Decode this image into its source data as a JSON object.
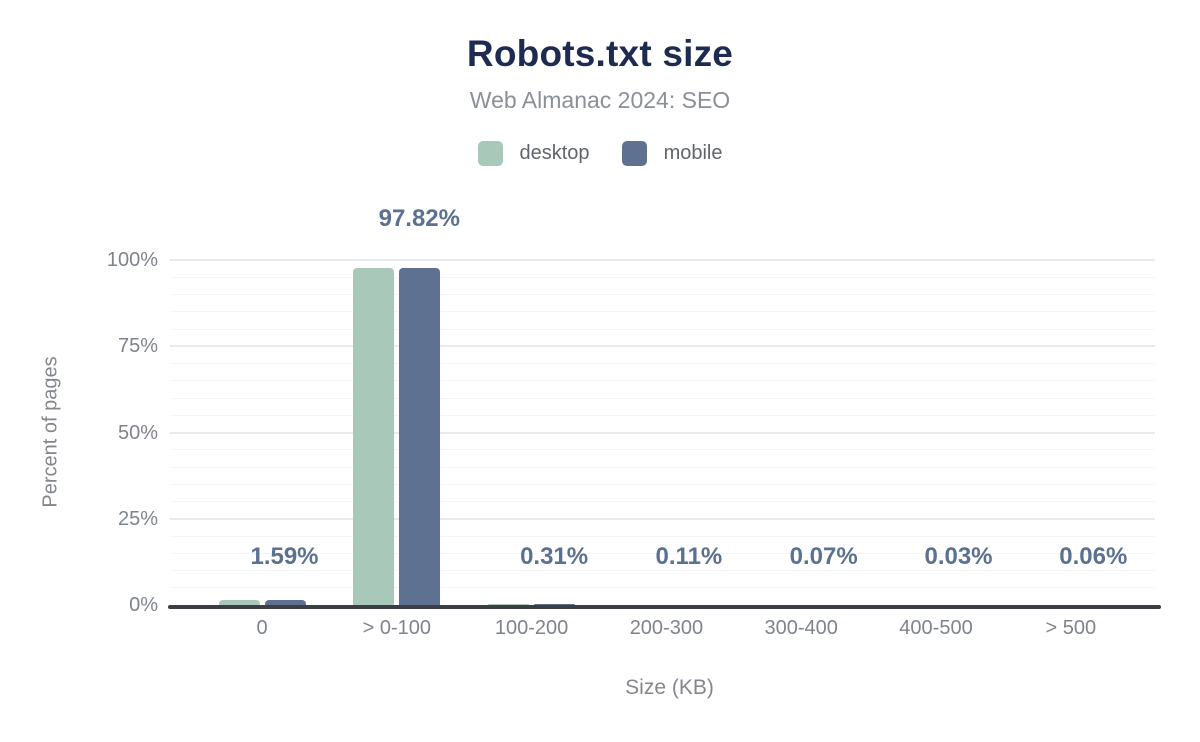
{
  "header": {
    "title": "Robots.txt size",
    "subtitle": "Web Almanac 2024: SEO"
  },
  "legend": {
    "items": [
      {
        "label": "desktop",
        "color": "#a8c9ba"
      },
      {
        "label": "mobile",
        "color": "#5e7190"
      }
    ]
  },
  "chart_data": {
    "type": "bar",
    "title": "Robots.txt size",
    "subtitle": "Web Almanac 2024: SEO",
    "categories": [
      "0",
      "> 0-100",
      "100-200",
      "200-300",
      "300-400",
      "400-500",
      "> 500"
    ],
    "series": [
      {
        "name": "desktop",
        "color": "#a8c9ba",
        "values": [
          1.59,
          97.82,
          0.31,
          0.11,
          0.07,
          0.03,
          0.06
        ]
      },
      {
        "name": "mobile",
        "color": "#5e7190",
        "values": [
          1.59,
          97.82,
          0.31,
          0.11,
          0.07,
          0.03,
          0.06
        ]
      }
    ],
    "data_labels": [
      "1.59%",
      "97.82%",
      "0.31%",
      "0.11%",
      "0.07%",
      "0.03%",
      "0.06%"
    ],
    "xlabel": "Size (KB)",
    "ylabel": "Percent of pages",
    "ylim": [
      0,
      100
    ],
    "yticks": [
      {
        "value": 0,
        "label": "0%"
      },
      {
        "value": 25,
        "label": "25%"
      },
      {
        "value": 50,
        "label": "50%"
      },
      {
        "value": 75,
        "label": "75%"
      },
      {
        "value": 100,
        "label": "100%"
      }
    ],
    "grid": {
      "minor_every": 5,
      "major_every": 25,
      "orientation": "horizontal"
    },
    "legend_position": "top"
  },
  "colors": {
    "background": "#ffffff",
    "title": "#1d2b50",
    "subtitle": "#8b9097",
    "legend_text": "#60656b",
    "tick_label": "#7f848b",
    "axis_title": "#83878d",
    "data_label": "#5b7191",
    "axis_line": "#3b3f45",
    "grid_major": "#e9eaec",
    "grid_minor": "#f4f5f6",
    "desktop_bar": "#a8c9ba",
    "mobile_bar": "#5e7190"
  }
}
